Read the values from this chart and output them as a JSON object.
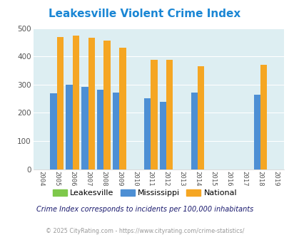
{
  "title": "Leakesville Violent Crime Index",
  "years": [
    2004,
    2005,
    2006,
    2007,
    2008,
    2009,
    2010,
    2011,
    2012,
    2013,
    2014,
    2015,
    2016,
    2017,
    2018,
    2019
  ],
  "mississippi": [
    0,
    270,
    300,
    292,
    282,
    272,
    0,
    252,
    238,
    0,
    272,
    0,
    0,
    0,
    263,
    0
  ],
  "national": [
    0,
    469,
    474,
    467,
    455,
    432,
    0,
    387,
    387,
    0,
    365,
    0,
    0,
    0,
    370,
    0
  ],
  "leakesville": [
    0,
    0,
    0,
    0,
    0,
    0,
    0,
    0,
    0,
    0,
    0,
    0,
    0,
    0,
    0,
    0
  ],
  "ylim": [
    0,
    500
  ],
  "yticks": [
    0,
    100,
    200,
    300,
    400,
    500
  ],
  "bar_width": 0.42,
  "mississippi_color": "#4d8fd4",
  "national_color": "#f5a623",
  "leakesville_color": "#7ec84a",
  "plot_bg": "#ddeef2",
  "grid_color": "#ffffff",
  "title_color": "#1a86d4",
  "subtitle": "Crime Index corresponds to incidents per 100,000 inhabitants",
  "footer": "© 2025 CityRating.com - https://www.cityrating.com/crime-statistics/",
  "subtitle_color": "#1a1a6e",
  "footer_color": "#999999"
}
